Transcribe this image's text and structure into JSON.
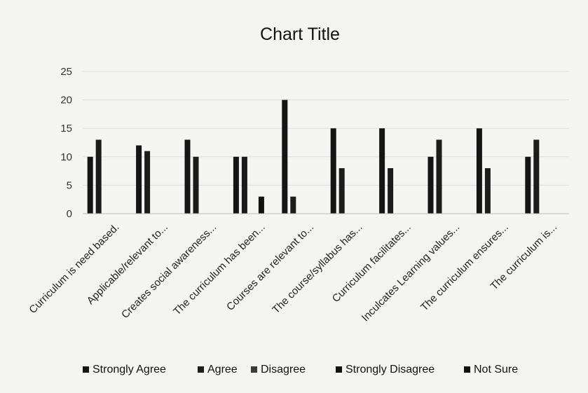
{
  "chart_data": {
    "type": "bar",
    "title": "Chart Title",
    "xlabel": "",
    "ylabel": "",
    "ylim": [
      0,
      25
    ],
    "yticks": [
      0,
      5,
      10,
      15,
      20,
      25
    ],
    "grid": true,
    "legend_position": "bottom",
    "categories": [
      "Curriculum is need based.",
      "Applicable/relevant to...",
      "Creates social awareness...",
      "The curriculum has been...",
      "Courses are relevant to...",
      "The course/syllabus has...",
      "Curriculum facilitates...",
      "Inculcates Learning values...",
      "The curriculum ensures...",
      "The curriculum is..."
    ],
    "series": [
      {
        "name": "Strongly Agree",
        "color": "#151515",
        "values": [
          10,
          12,
          13,
          10,
          20,
          15,
          15,
          10,
          15,
          10
        ]
      },
      {
        "name": "Agree",
        "color": "#1c1c1c",
        "values": [
          13,
          11,
          10,
          10,
          3,
          8,
          8,
          13,
          8,
          13
        ]
      },
      {
        "name": "Disagree",
        "color": "#3a3a3a",
        "values": [
          0,
          0,
          0,
          0,
          0,
          0,
          0,
          0,
          0,
          0
        ]
      },
      {
        "name": "Strongly Disagree",
        "color": "#121212",
        "values": [
          0,
          0,
          0,
          3,
          0,
          0,
          0,
          0,
          0,
          0
        ]
      },
      {
        "name": "Not Sure",
        "color": "#101010",
        "values": [
          0,
          0,
          0,
          0,
          0,
          0,
          0,
          0,
          0,
          0
        ]
      }
    ]
  }
}
